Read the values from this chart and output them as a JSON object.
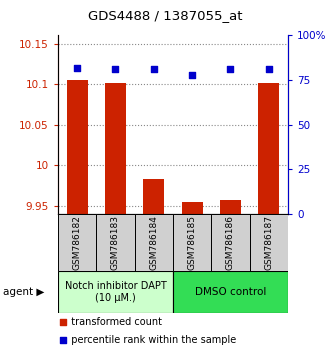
{
  "title": "GDS4488 / 1387055_at",
  "samples": [
    "GSM786182",
    "GSM786183",
    "GSM786184",
    "GSM786185",
    "GSM786186",
    "GSM786187"
  ],
  "bar_values": [
    10.105,
    10.102,
    9.983,
    9.955,
    9.957,
    10.102
  ],
  "percentile_values": [
    82,
    81,
    81,
    78,
    81,
    81
  ],
  "bar_color": "#cc2200",
  "dot_color": "#0000cc",
  "ylim_left": [
    9.94,
    10.16
  ],
  "ylim_right": [
    0,
    100
  ],
  "yticks_left": [
    9.95,
    10.0,
    10.05,
    10.1,
    10.15
  ],
  "yticks_left_labels": [
    "9.95",
    "10",
    "10.05",
    "10.1",
    "10.15"
  ],
  "yticks_right": [
    0,
    25,
    50,
    75,
    100
  ],
  "yticks_right_labels": [
    "0",
    "25",
    "50",
    "75",
    "100%"
  ],
  "group1_label": "Notch inhibitor DAPT\n(10 μM.)",
  "group2_label": "DMSO control",
  "group1_color": "#ccffcc",
  "group2_color": "#33dd55",
  "agent_label": "agent",
  "legend1": "transformed count",
  "legend2": "percentile rank within the sample",
  "grid_color": "#888888",
  "bar_width": 0.55
}
